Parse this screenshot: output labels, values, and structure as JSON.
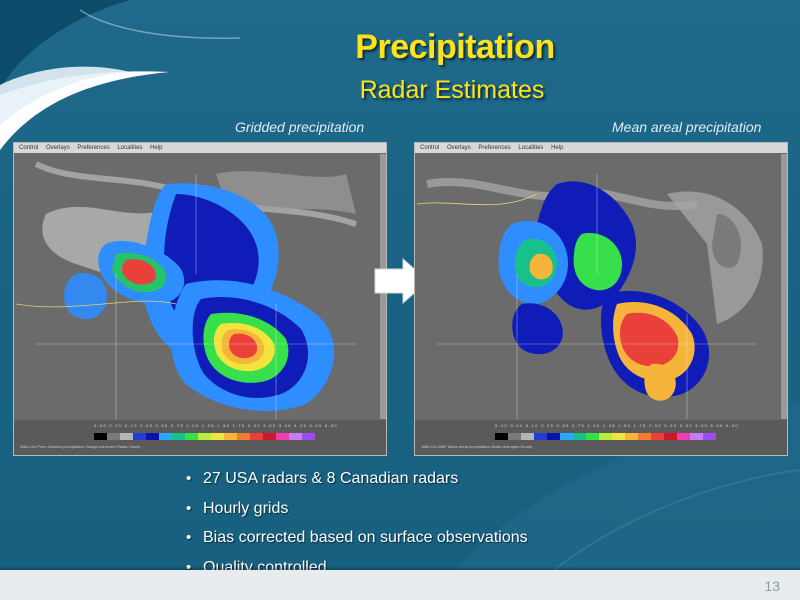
{
  "slide": {
    "title": "Precipitation",
    "subtitle": "Radar Estimates",
    "page_number": "13",
    "colors": {
      "background": "#1d6485",
      "title": "#ffe21a",
      "text": "#ffffff",
      "caption": "#dfeef6",
      "footer": "#e9ecef"
    }
  },
  "panels": {
    "left": {
      "caption": "Gridded precipitation",
      "menu": [
        "Control",
        "Overlays",
        "Preferences",
        "Localities",
        "Help"
      ]
    },
    "right": {
      "caption": "Mean areal precipitation",
      "menu": [
        "Control",
        "Overlays",
        "Preferences",
        "Localities",
        "Help"
      ]
    },
    "legend_colors": [
      "#000000",
      "#7a7a7a",
      "#b5b5b5",
      "#1f3fd0",
      "#0a12a8",
      "#2aa6ff",
      "#18c18a",
      "#37e04a",
      "#b6ee3c",
      "#f4e33c",
      "#f4b53a",
      "#ef7b2f",
      "#e9403a",
      "#cf1528",
      "#f03cb0",
      "#c77df0",
      "#9b4ef0"
    ],
    "arrow_icon": "right-arrow-icon"
  },
  "bullets": [
    "27 USA radars & 8 Canadian radars",
    "Hourly grids",
    "Bias corrected based on surface observations",
    "Quality controlled"
  ]
}
